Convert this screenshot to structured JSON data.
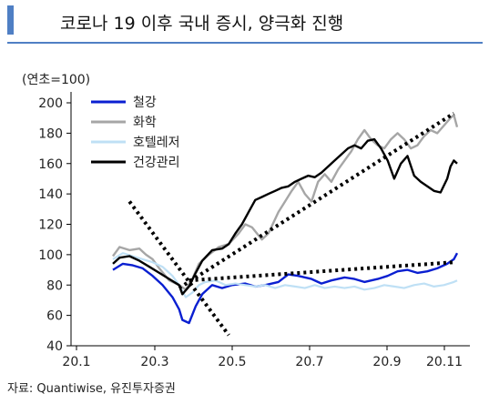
{
  "header": {
    "title": "코로나 19 이후 국내 증시, 양극화 진행",
    "accent_color": "#4f7fc4"
  },
  "source": "자료: Quantiwise, 유진투자증권",
  "chart_data": {
    "type": "line",
    "title": "코로나 19 이후 국내 증시, 양극화 진행",
    "ylabel": "(연초=100)",
    "xlabel": "",
    "ylim": [
      40,
      200
    ],
    "yticks": [
      40,
      60,
      80,
      100,
      120,
      140,
      160,
      180,
      200
    ],
    "xlim": [
      20.1,
      20.115
    ],
    "xtick_labels": [
      "20.1",
      "20.3",
      "20.5",
      "20.7",
      "20.9",
      "20.11"
    ],
    "grid": false,
    "legend_position": "top-left",
    "series": [
      {
        "name": "철강",
        "color": "#0a1fd1",
        "points": [
          [
            20.1,
            90
          ],
          [
            20.13,
            94
          ],
          [
            20.16,
            93
          ],
          [
            20.19,
            91
          ],
          [
            20.22,
            86
          ],
          [
            20.25,
            80
          ],
          [
            20.28,
            72
          ],
          [
            20.3,
            64
          ],
          [
            20.31,
            57
          ],
          [
            20.33,
            55
          ],
          [
            20.35,
            66
          ],
          [
            20.37,
            74
          ],
          [
            20.4,
            80
          ],
          [
            20.43,
            78
          ],
          [
            20.46,
            80
          ],
          [
            20.5,
            81
          ],
          [
            20.53,
            79
          ],
          [
            20.56,
            80
          ],
          [
            20.6,
            82
          ],
          [
            20.63,
            87
          ],
          [
            20.66,
            86
          ],
          [
            20.7,
            84
          ],
          [
            20.73,
            81
          ],
          [
            20.76,
            83
          ],
          [
            20.8,
            85
          ],
          [
            20.83,
            84
          ],
          [
            20.86,
            82
          ],
          [
            20.9,
            84
          ],
          [
            20.93,
            86
          ],
          [
            20.96,
            89
          ],
          [
            20.99,
            90
          ],
          [
            21.02,
            88
          ],
          [
            21.05,
            89
          ],
          [
            21.08,
            91
          ],
          [
            21.11,
            94
          ],
          [
            21.13,
            97
          ],
          [
            21.14,
            101
          ]
        ]
      },
      {
        "name": "화학",
        "color": "#a6a6a6",
        "points": [
          [
            20.1,
            99
          ],
          [
            20.12,
            105
          ],
          [
            20.15,
            103
          ],
          [
            20.18,
            104
          ],
          [
            20.2,
            100
          ],
          [
            20.22,
            97
          ],
          [
            20.24,
            91
          ],
          [
            20.27,
            83
          ],
          [
            20.3,
            80
          ],
          [
            20.32,
            77
          ],
          [
            20.34,
            84
          ],
          [
            20.36,
            94
          ],
          [
            20.39,
            100
          ],
          [
            20.42,
            105
          ],
          [
            20.45,
            107
          ],
          [
            20.48,
            114
          ],
          [
            20.5,
            120
          ],
          [
            20.52,
            118
          ],
          [
            20.55,
            110
          ],
          [
            20.57,
            114
          ],
          [
            20.6,
            128
          ],
          [
            20.62,
            135
          ],
          [
            20.64,
            142
          ],
          [
            20.66,
            148
          ],
          [
            20.68,
            140
          ],
          [
            20.7,
            135
          ],
          [
            20.72,
            148
          ],
          [
            20.74,
            153
          ],
          [
            20.76,
            148
          ],
          [
            20.78,
            156
          ],
          [
            20.8,
            162
          ],
          [
            20.82,
            168
          ],
          [
            20.84,
            176
          ],
          [
            20.86,
            182
          ],
          [
            20.88,
            176
          ],
          [
            20.9,
            172
          ],
          [
            20.92,
            170
          ],
          [
            20.94,
            176
          ],
          [
            20.96,
            180
          ],
          [
            20.98,
            176
          ],
          [
            21.0,
            170
          ],
          [
            21.02,
            172
          ],
          [
            21.04,
            178
          ],
          [
            21.06,
            182
          ],
          [
            21.08,
            180
          ],
          [
            21.1,
            185
          ],
          [
            21.12,
            190
          ],
          [
            21.13,
            192
          ],
          [
            21.14,
            184
          ]
        ]
      },
      {
        "name": "호텔레저",
        "color": "#bfe0f5",
        "points": [
          [
            20.1,
            97
          ],
          [
            20.13,
            101
          ],
          [
            20.16,
            99
          ],
          [
            20.19,
            97
          ],
          [
            20.22,
            95
          ],
          [
            20.25,
            92
          ],
          [
            20.28,
            86
          ],
          [
            20.3,
            80
          ],
          [
            20.32,
            72
          ],
          [
            20.34,
            75
          ],
          [
            20.36,
            80
          ],
          [
            20.38,
            82
          ],
          [
            20.41,
            83
          ],
          [
            20.44,
            80
          ],
          [
            20.47,
            81
          ],
          [
            20.5,
            80
          ],
          [
            20.53,
            79
          ],
          [
            20.56,
            80
          ],
          [
            20.59,
            78
          ],
          [
            20.62,
            80
          ],
          [
            20.65,
            79
          ],
          [
            20.68,
            78
          ],
          [
            20.71,
            80
          ],
          [
            20.74,
            78
          ],
          [
            20.77,
            79
          ],
          [
            20.8,
            78
          ],
          [
            20.83,
            79
          ],
          [
            20.86,
            77
          ],
          [
            20.89,
            78
          ],
          [
            20.92,
            80
          ],
          [
            20.95,
            79
          ],
          [
            20.98,
            78
          ],
          [
            21.01,
            80
          ],
          [
            21.04,
            81
          ],
          [
            21.07,
            79
          ],
          [
            21.1,
            80
          ],
          [
            21.13,
            82
          ],
          [
            21.14,
            83
          ]
        ]
      },
      {
        "name": "건강관리",
        "color": "#000000",
        "points": [
          [
            20.1,
            94
          ],
          [
            20.12,
            98
          ],
          [
            20.15,
            99
          ],
          [
            20.18,
            96
          ],
          [
            20.21,
            92
          ],
          [
            20.24,
            88
          ],
          [
            20.27,
            84
          ],
          [
            20.3,
            80
          ],
          [
            20.31,
            74
          ],
          [
            20.33,
            79
          ],
          [
            20.35,
            88
          ],
          [
            20.37,
            96
          ],
          [
            20.4,
            103
          ],
          [
            20.43,
            104
          ],
          [
            20.45,
            107
          ],
          [
            20.47,
            114
          ],
          [
            20.49,
            120
          ],
          [
            20.51,
            128
          ],
          [
            20.53,
            136
          ],
          [
            20.55,
            138
          ],
          [
            20.57,
            140
          ],
          [
            20.59,
            142
          ],
          [
            20.61,
            144
          ],
          [
            20.63,
            145
          ],
          [
            20.65,
            148
          ],
          [
            20.67,
            150
          ],
          [
            20.69,
            152
          ],
          [
            20.71,
            151
          ],
          [
            20.73,
            154
          ],
          [
            20.75,
            158
          ],
          [
            20.77,
            162
          ],
          [
            20.79,
            166
          ],
          [
            20.81,
            170
          ],
          [
            20.83,
            172
          ],
          [
            20.85,
            170
          ],
          [
            20.87,
            175
          ],
          [
            20.89,
            176
          ],
          [
            20.91,
            170
          ],
          [
            20.93,
            162
          ],
          [
            20.95,
            150
          ],
          [
            20.97,
            160
          ],
          [
            20.99,
            165
          ],
          [
            21.01,
            152
          ],
          [
            21.03,
            148
          ],
          [
            21.05,
            145
          ],
          [
            21.07,
            142
          ],
          [
            21.09,
            141
          ],
          [
            21.11,
            150
          ],
          [
            21.12,
            158
          ],
          [
            21.13,
            162
          ],
          [
            21.14,
            160
          ]
        ]
      }
    ],
    "trend_lines": [
      {
        "from": [
          20.15,
          135
        ],
        "to": [
          20.45,
          47
        ]
      },
      {
        "from": [
          20.3,
          78
        ],
        "to": [
          21.13,
          193
        ]
      },
      {
        "from": [
          20.33,
          83
        ],
        "to": [
          21.13,
          95
        ]
      }
    ]
  }
}
